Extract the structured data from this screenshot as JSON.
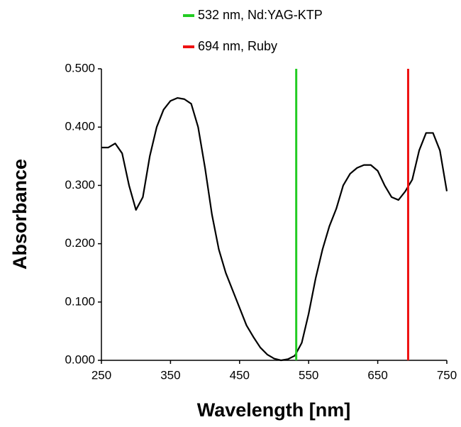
{
  "chart_data": {
    "type": "line",
    "x_label": "Wavelength [nm]",
    "y_label": "Absorbance",
    "xlim": [
      250,
      750
    ],
    "xticks": [
      250,
      350,
      450,
      550,
      650,
      750
    ],
    "ylim": [
      0,
      0.5
    ],
    "yticks": [
      {
        "value": 0,
        "label": "0.000"
      },
      {
        "value": 0.1,
        "label": "0.100"
      },
      {
        "value": 0.2,
        "label": "0.200"
      },
      {
        "value": 0.3,
        "label": "0.300"
      },
      {
        "value": 0.4,
        "label": "0.400"
      },
      {
        "value": 0.5,
        "label": "0.500"
      }
    ],
    "legend": "top",
    "series": [
      {
        "color": "#000000",
        "x": [
          250,
          260,
          270,
          280,
          290,
          300,
          310,
          320,
          330,
          340,
          350,
          360,
          370,
          380,
          390,
          400,
          410,
          420,
          430,
          440,
          450,
          460,
          470,
          480,
          490,
          500,
          510,
          520,
          530,
          540,
          550,
          560,
          570,
          580,
          590,
          600,
          610,
          620,
          630,
          640,
          650,
          660,
          670,
          680,
          690,
          700,
          710,
          720,
          730,
          740,
          750
        ],
        "values": [
          0.365,
          0.365,
          0.372,
          0.355,
          0.3,
          0.258,
          0.28,
          0.35,
          0.4,
          0.43,
          0.445,
          0.45,
          0.448,
          0.44,
          0.4,
          0.33,
          0.25,
          0.19,
          0.15,
          0.12,
          0.09,
          0.06,
          0.04,
          0.022,
          0.01,
          0.003,
          0,
          0.002,
          0.008,
          0.03,
          0.08,
          0.14,
          0.19,
          0.23,
          0.26,
          0.3,
          0.32,
          0.33,
          0.335,
          0.335,
          0.325,
          0.3,
          0.28,
          0.275,
          0.29,
          0.31,
          0.36,
          0.39,
          0.39,
          0.36,
          0.29
        ]
      },
      {
        "name": "532 nm, Nd:YAG-KTP",
        "color": "#22cc22",
        "x": [
          532,
          532
        ],
        "values": [
          0,
          0.5
        ]
      },
      {
        "name": "694 nm, Ruby",
        "color": "#ee1111",
        "x": [
          694,
          694
        ],
        "values": [
          0,
          0.5
        ]
      }
    ]
  }
}
